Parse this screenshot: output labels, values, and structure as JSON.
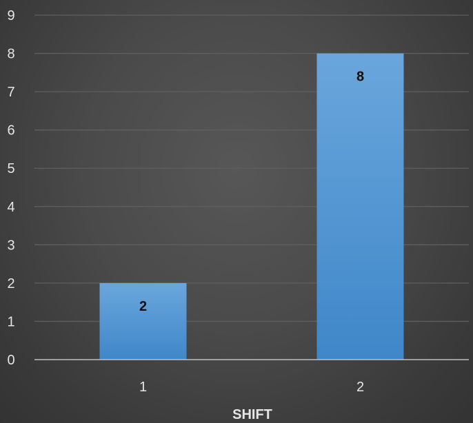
{
  "chart_data": {
    "type": "bar",
    "categories": [
      "1",
      "2"
    ],
    "values": [
      2,
      8
    ],
    "data_labels": [
      "2",
      "8"
    ],
    "title": "",
    "xlabel": "SHIFT",
    "ylabel": "",
    "ylim": [
      0,
      9
    ],
    "yticks": [
      "0",
      "1",
      "2",
      "3",
      "4",
      "5",
      "6",
      "7",
      "8",
      "9"
    ],
    "grid": true,
    "legend": "none",
    "colors": {
      "bar_top": "#6aa6dc",
      "bar_bottom": "#3f87c9",
      "gridline": "#5f5f5f",
      "axis": "#bfbfbf",
      "text": "#e6e6e6",
      "data_label": "#0d0d0d"
    }
  }
}
